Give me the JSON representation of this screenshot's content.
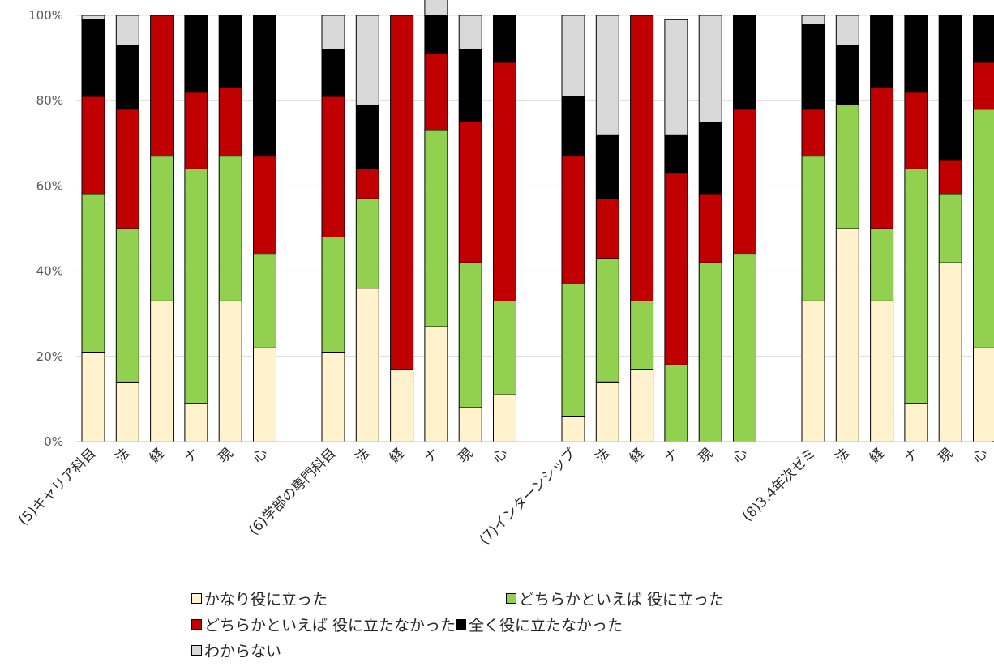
{
  "chart_data": {
    "type": "bar",
    "stacked": true,
    "percent": true,
    "ylim": [
      0,
      100
    ],
    "yticks": [
      "0%",
      "20%",
      "40%",
      "60%",
      "80%",
      "100%"
    ],
    "grid": true,
    "legend_position": "bottom",
    "categories": [
      "(5)キャリア科目",
      "法",
      "経",
      "ナ",
      "現",
      "心",
      "(6)学部の専門科目",
      "法",
      "経",
      "ナ",
      "現",
      "心",
      "(7)インターンシップ",
      "法",
      "経",
      "ナ",
      "現",
      "心",
      "(8)3.4年次ゼミ",
      "法",
      "経",
      "ナ",
      "現",
      "心"
    ],
    "series": [
      {
        "name": "かなり役に立った",
        "color": "#FFF2CC",
        "values": [
          21,
          14,
          33,
          9,
          33,
          22,
          21,
          36,
          17,
          27,
          8,
          11,
          6,
          14,
          17,
          0,
          0,
          0,
          33,
          50,
          33,
          9,
          42,
          22
        ]
      },
      {
        "name": "どちらかといえば 役に立った",
        "color": "#92D050",
        "values": [
          37,
          36,
          34,
          55,
          34,
          22,
          27,
          21,
          0,
          46,
          34,
          22,
          31,
          29,
          16,
          18,
          42,
          44,
          34,
          29,
          17,
          55,
          16,
          56
        ]
      },
      {
        "name": "どちらかといえば 役に立たなかった",
        "color": "#C00000",
        "values": [
          23,
          28,
          33,
          18,
          16,
          23,
          33,
          7,
          83,
          18,
          33,
          56,
          30,
          14,
          67,
          45,
          16,
          34,
          11,
          0,
          33,
          18,
          8,
          11
        ]
      },
      {
        "name": "全く役に立たなかった",
        "color": "#000000",
        "values": [
          18,
          15,
          0,
          18,
          17,
          33,
          11,
          15,
          0,
          9,
          17,
          11,
          14,
          15,
          0,
          9,
          17,
          22,
          20,
          14,
          17,
          18,
          34,
          11
        ]
      },
      {
        "name": "わからない",
        "color": "#D9D9D9",
        "values": [
          1,
          7,
          0,
          0,
          0,
          0,
          8,
          21,
          0,
          9,
          8,
          0,
          19,
          28,
          0,
          27,
          25,
          0,
          2,
          7,
          0,
          0,
          0,
          0
        ]
      }
    ]
  }
}
